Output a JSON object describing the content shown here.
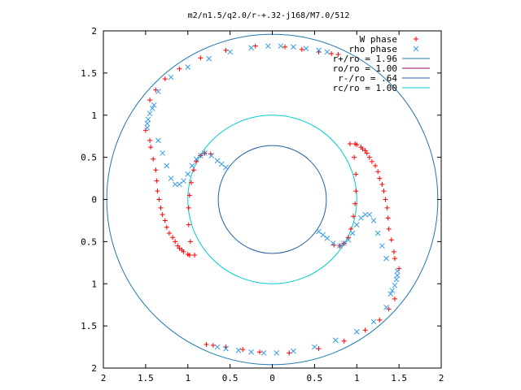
{
  "chart_data": {
    "type": "scatter",
    "title": "m2/n1.5/q2.0/r-+.32-j168/M7.0/512",
    "xlabel": "",
    "ylabel": "",
    "xlim": [
      -2,
      2
    ],
    "ylim": [
      -2,
      2
    ],
    "x_tick_labels": [
      "2",
      "1.5",
      "1",
      "0.5",
      "0",
      "0.5",
      "1",
      "1.5",
      "2"
    ],
    "y_tick_labels": [
      "2",
      "1.5",
      "1",
      "0.5",
      "0",
      "0.5",
      "1",
      "1.5",
      "2"
    ],
    "grid": false,
    "legend_position": "top-right",
    "legend": [
      {
        "label": "W phase",
        "kind": "marker",
        "symbol": "+",
        "color": "#ff0000"
      },
      {
        "label": "rho phase",
        "kind": "marker",
        "symbol": "x",
        "color": "#3399ee"
      },
      {
        "label": "r+/ro = 1.96",
        "kind": "line",
        "color": "#1f78b4"
      },
      {
        "label": "ro/ro = 1.00",
        "kind": "line",
        "color": "#990066"
      },
      {
        "label": "r-/ro = .64",
        "kind": "line",
        "color": "#1f5fa8"
      },
      {
        "label": "rc/ro = 1.00",
        "kind": "line",
        "color": "#00cccc"
      }
    ],
    "circles": [
      {
        "series": "r+/ro",
        "radius": 1.96,
        "color": "#1f78b4"
      },
      {
        "series": "rc/ro",
        "radius": 1.0,
        "color": "#00cccc"
      },
      {
        "series": "r-/ro",
        "radius": 0.64,
        "color": "#1f5fa8"
      }
    ],
    "series": [
      {
        "name": "W phase",
        "color": "#ff0000",
        "points": [
          [
            -1.5,
            0.82
          ],
          [
            -1.44,
            0.62
          ],
          [
            -1.38,
            0.35
          ],
          [
            -1.36,
            0.1
          ],
          [
            -1.32,
            -0.1
          ],
          [
            -1.27,
            -0.25
          ],
          [
            -1.22,
            -0.4
          ],
          [
            -1.15,
            -0.5
          ],
          [
            -1.1,
            -0.58
          ],
          [
            -1.05,
            -0.62
          ],
          [
            -0.98,
            -0.66
          ],
          [
            -0.92,
            -0.66
          ],
          [
            -1.45,
            0.7
          ],
          [
            -1.41,
            0.48
          ],
          [
            -1.37,
            0.22
          ],
          [
            -1.34,
            0.0
          ],
          [
            -1.3,
            -0.18
          ],
          [
            -1.25,
            -0.33
          ],
          [
            -1.18,
            -0.45
          ],
          [
            -1.12,
            -0.55
          ],
          [
            -1.07,
            -0.6
          ],
          [
            -1.0,
            -0.65
          ],
          [
            -0.97,
            -0.5
          ],
          [
            -0.99,
            -0.3
          ],
          [
            -0.99,
            -0.1
          ],
          [
            -0.98,
            0.05
          ],
          [
            -0.96,
            0.2
          ],
          [
            -0.93,
            0.35
          ],
          [
            -0.9,
            0.45
          ],
          [
            -0.85,
            0.52
          ],
          [
            -0.8,
            0.55
          ],
          [
            -0.73,
            0.54
          ],
          [
            1.5,
            -0.82
          ],
          [
            1.44,
            -0.62
          ],
          [
            1.38,
            -0.35
          ],
          [
            1.36,
            -0.1
          ],
          [
            1.32,
            0.1
          ],
          [
            1.27,
            0.25
          ],
          [
            1.22,
            0.4
          ],
          [
            1.15,
            0.5
          ],
          [
            1.1,
            0.58
          ],
          [
            1.05,
            0.62
          ],
          [
            0.98,
            0.66
          ],
          [
            0.92,
            0.66
          ],
          [
            1.45,
            -0.7
          ],
          [
            1.41,
            -0.48
          ],
          [
            1.37,
            -0.22
          ],
          [
            1.34,
            0.0
          ],
          [
            1.3,
            0.18
          ],
          [
            1.25,
            0.33
          ],
          [
            1.18,
            0.45
          ],
          [
            1.12,
            0.55
          ],
          [
            1.07,
            0.6
          ],
          [
            1.0,
            0.65
          ],
          [
            0.97,
            0.5
          ],
          [
            0.99,
            0.3
          ],
          [
            0.99,
            0.1
          ],
          [
            0.98,
            -0.05
          ],
          [
            0.96,
            -0.2
          ],
          [
            0.93,
            -0.35
          ],
          [
            0.9,
            -0.45
          ],
          [
            0.85,
            -0.52
          ],
          [
            0.8,
            -0.55
          ],
          [
            0.73,
            -0.54
          ],
          [
            -1.45,
            1.18
          ],
          [
            -1.38,
            1.3
          ],
          [
            -1.27,
            1.43
          ],
          [
            -1.1,
            1.55
          ],
          [
            -0.85,
            1.68
          ],
          [
            -0.55,
            1.77
          ],
          [
            -0.2,
            1.82
          ],
          [
            0.15,
            1.81
          ],
          [
            0.35,
            1.78
          ],
          [
            0.55,
            1.75
          ],
          [
            0.7,
            1.73
          ],
          [
            0.78,
            1.72
          ],
          [
            1.45,
            -1.18
          ],
          [
            1.38,
            -1.3
          ],
          [
            1.27,
            -1.43
          ],
          [
            1.1,
            -1.55
          ],
          [
            0.85,
            -1.68
          ],
          [
            0.55,
            -1.77
          ],
          [
            0.2,
            -1.82
          ],
          [
            -0.15,
            -1.81
          ],
          [
            -0.35,
            -1.78
          ],
          [
            -0.55,
            -1.75
          ],
          [
            -0.7,
            -1.73
          ],
          [
            -0.78,
            -1.72
          ]
        ]
      },
      {
        "name": "rho phase",
        "color": "#3399ee",
        "points": [
          [
            -1.48,
            0.85
          ],
          [
            -1.48,
            0.9
          ],
          [
            -1.47,
            0.95
          ],
          [
            -1.45,
            1.02
          ],
          [
            -1.42,
            1.08
          ],
          [
            -1.4,
            1.12
          ],
          [
            -1.35,
            0.7
          ],
          [
            -1.3,
            0.55
          ],
          [
            -1.25,
            0.4
          ],
          [
            -1.2,
            0.25
          ],
          [
            -1.15,
            0.18
          ],
          [
            -1.1,
            0.18
          ],
          [
            -1.05,
            0.22
          ],
          [
            -1.0,
            0.3
          ],
          [
            -0.95,
            0.4
          ],
          [
            -0.9,
            0.48
          ],
          [
            -0.85,
            0.52
          ],
          [
            -0.8,
            0.55
          ],
          [
            -0.72,
            0.52
          ],
          [
            -0.65,
            0.46
          ],
          [
            -0.6,
            0.42
          ],
          [
            -0.55,
            0.38
          ],
          [
            1.48,
            -0.85
          ],
          [
            1.48,
            -0.9
          ],
          [
            1.47,
            -0.95
          ],
          [
            1.45,
            -1.02
          ],
          [
            1.42,
            -1.08
          ],
          [
            1.4,
            -1.12
          ],
          [
            1.35,
            -0.7
          ],
          [
            1.3,
            -0.55
          ],
          [
            1.25,
            -0.4
          ],
          [
            1.2,
            -0.25
          ],
          [
            1.15,
            -0.18
          ],
          [
            1.1,
            -0.18
          ],
          [
            1.05,
            -0.22
          ],
          [
            1.0,
            -0.3
          ],
          [
            0.95,
            -0.4
          ],
          [
            0.9,
            -0.48
          ],
          [
            0.85,
            -0.52
          ],
          [
            0.8,
            -0.55
          ],
          [
            0.72,
            -0.52
          ],
          [
            0.65,
            -0.46
          ],
          [
            0.6,
            -0.42
          ],
          [
            0.55,
            -0.38
          ],
          [
            -1.35,
            1.28
          ],
          [
            -1.2,
            1.45
          ],
          [
            -1.0,
            1.57
          ],
          [
            -0.75,
            1.67
          ],
          [
            -0.5,
            1.75
          ],
          [
            -0.25,
            1.8
          ],
          [
            -0.05,
            1.82
          ],
          [
            0.1,
            1.82
          ],
          [
            0.25,
            1.81
          ],
          [
            0.4,
            1.79
          ],
          [
            0.55,
            1.77
          ],
          [
            0.65,
            1.75
          ],
          [
            1.35,
            -1.28
          ],
          [
            1.2,
            -1.45
          ],
          [
            1.0,
            -1.57
          ],
          [
            0.75,
            -1.67
          ],
          [
            0.5,
            -1.75
          ],
          [
            0.25,
            -1.8
          ],
          [
            0.05,
            -1.82
          ],
          [
            -0.1,
            -1.82
          ],
          [
            -0.25,
            -1.81
          ],
          [
            -0.4,
            -1.79
          ],
          [
            -0.55,
            -1.77
          ],
          [
            -0.65,
            -1.75
          ]
        ]
      }
    ]
  }
}
